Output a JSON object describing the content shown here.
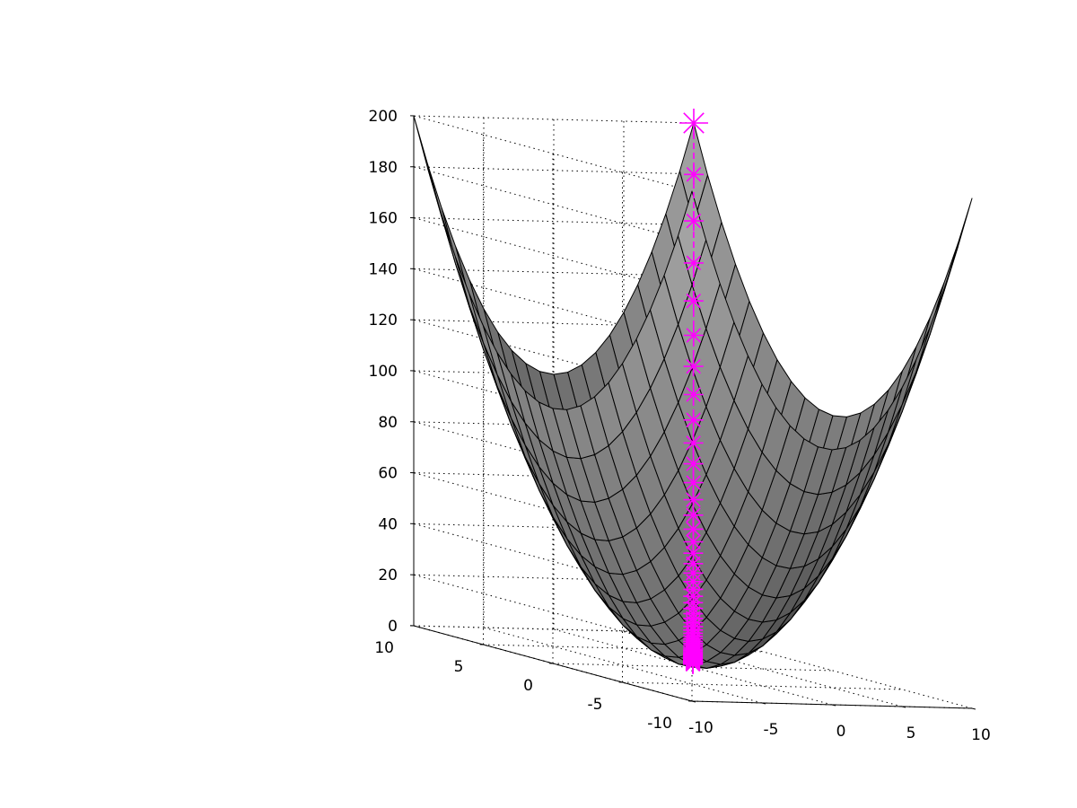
{
  "chart_data": {
    "type": "surface",
    "surface_function": "z = x^2 + y^2",
    "surface_grid_step": 1,
    "x": {
      "range": [
        -10,
        10
      ],
      "ticks": [
        -10,
        -5,
        0,
        5,
        10
      ],
      "tick_labels": [
        "-10",
        "-5",
        "0",
        "5",
        "10"
      ]
    },
    "y": {
      "range": [
        -10,
        10
      ],
      "ticks": [
        -10,
        -5,
        0,
        5,
        10
      ],
      "tick_labels": [
        "-10",
        "-5",
        "0",
        "5",
        "10"
      ]
    },
    "z": {
      "range": [
        0,
        200
      ],
      "ticks": [
        0,
        20,
        40,
        60,
        80,
        100,
        120,
        140,
        160,
        180,
        200
      ],
      "tick_labels": [
        "0",
        "20",
        "40",
        "60",
        "80",
        "100",
        "120",
        "140",
        "160",
        "180",
        "200"
      ]
    },
    "grid": true,
    "surface_colormap": "gray",
    "series": [
      {
        "type": "line3d",
        "color": "#ff00ff",
        "line_style": "dashed",
        "marker": "*",
        "start_point": {
          "x": 10,
          "y": 10,
          "z": 200
        },
        "end_point": {
          "x": 0,
          "y": 0,
          "z": 0
        },
        "decay_factor": 0.95,
        "num_points": 60
      }
    ]
  }
}
